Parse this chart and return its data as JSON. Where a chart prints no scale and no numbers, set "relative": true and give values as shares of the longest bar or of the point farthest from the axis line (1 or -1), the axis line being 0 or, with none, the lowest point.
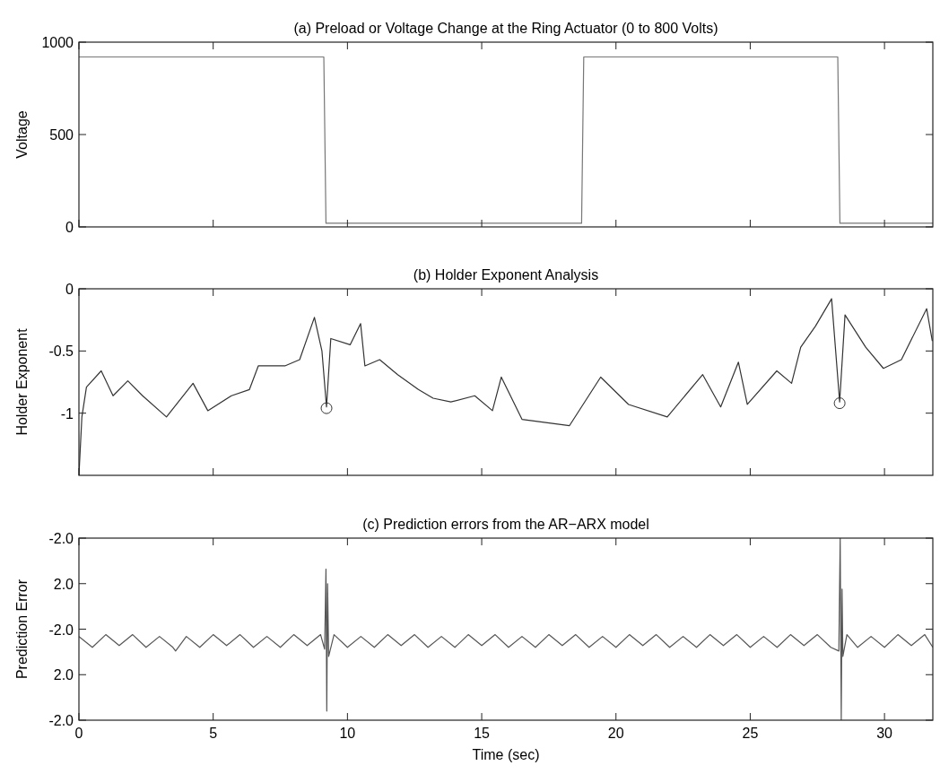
{
  "chart_data": [
    {
      "type": "line",
      "title": "(a) Preload or Voltage Change at the Ring Actuator (0 to 800 Volts)",
      "ylabel": "Voltage",
      "xlim": [
        0,
        31.8
      ],
      "xticks": [
        0,
        5,
        10,
        15,
        20,
        25,
        30
      ],
      "ylim": [
        0,
        1000
      ],
      "yticks": [
        0,
        500,
        1000
      ],
      "tick_labels": "y",
      "series": [
        {
          "color": "#777777",
          "x": [
            0,
            9.12,
            9.2,
            18.72,
            18.8,
            28.26,
            28.34,
            31.8
          ],
          "values": [
            920,
            920,
            20,
            20,
            920,
            920,
            20,
            20
          ]
        }
      ]
    },
    {
      "type": "line",
      "title": "(b) Holder Exponent Analysis",
      "ylabel": "Holder Exponent",
      "xlim": [
        0,
        31.8
      ],
      "xticks": [
        0,
        5,
        10,
        15,
        20,
        25,
        30
      ],
      "ylim": [
        -1.5,
        0
      ],
      "yticks": [
        -1,
        -0.5,
        0
      ],
      "tick_labels": "y",
      "series": [
        {
          "color": "#333333",
          "x": [
            0,
            0.11,
            0.28,
            0.83,
            1.27,
            1.82,
            2.37,
            3.26,
            4.25,
            4.8,
            5.68,
            6.35,
            6.68,
            7.67,
            8.22,
            8.77,
            9.05,
            9.22,
            9.38,
            10.1,
            10.49,
            10.65,
            11.2,
            11.87,
            12.64,
            13.19,
            13.85,
            14.74,
            15.4,
            15.73,
            16.5,
            18.27,
            19.43,
            20.47,
            21.91,
            23.23,
            23.9,
            24.56,
            24.89,
            25.99,
            26.54,
            26.88,
            27.43,
            28.03,
            28.33,
            28.53,
            29.3,
            29.96,
            30.63,
            31.57,
            31.78
          ],
          "values": [
            -1.5,
            -1.03,
            -0.79,
            -0.66,
            -0.86,
            -0.74,
            -0.86,
            -1.03,
            -0.76,
            -0.98,
            -0.86,
            -0.81,
            -0.62,
            -0.62,
            -0.57,
            -0.23,
            -0.5,
            -0.95,
            -0.4,
            -0.45,
            -0.28,
            -0.62,
            -0.57,
            -0.69,
            -0.81,
            -0.88,
            -0.91,
            -0.86,
            -0.98,
            -0.71,
            -1.05,
            -1.1,
            -0.71,
            -0.93,
            -1.03,
            -0.69,
            -0.95,
            -0.59,
            -0.93,
            -0.66,
            -0.76,
            -0.47,
            -0.3,
            -0.08,
            -0.91,
            -0.21,
            -0.47,
            -0.64,
            -0.57,
            -0.16,
            -0.42
          ]
        },
        {
          "type": "scatter",
          "marker": "circle",
          "color": "#333333",
          "x": [
            9.22,
            28.33
          ],
          "values": [
            -0.96,
            -0.92
          ]
        }
      ]
    },
    {
      "type": "line",
      "title": "(c) Prediction errors from the AR−ARX model",
      "ylabel": "Prediction Error",
      "xlabel": "Time (sec)",
      "xlim": [
        0,
        31.8
      ],
      "xticks": [
        0,
        5,
        10,
        15,
        20,
        25,
        30
      ],
      "relative": true,
      "annotations": [
        "-2.0",
        "2.0",
        "-2.0",
        "2.0",
        "-2.0"
      ],
      "series": [
        {
          "color": "#555555",
          "x": [
            0,
            0.5,
            1,
            1.5,
            2,
            2.5,
            3,
            3.5,
            3.6,
            4,
            4.5,
            5,
            5.5,
            6,
            6.5,
            7,
            7.5,
            8,
            8.5,
            9,
            9.15,
            9.2,
            9.23,
            9.26,
            9.3,
            9.5,
            10,
            10.5,
            11,
            11.5,
            12,
            12.5,
            13,
            13.5,
            14,
            14.5,
            15,
            15.5,
            16,
            16.5,
            17,
            17.5,
            18,
            18.5,
            19,
            19.5,
            20,
            20.5,
            21,
            21.5,
            22,
            22.5,
            23,
            23.5,
            24,
            24.5,
            25,
            25.5,
            26,
            26.5,
            27,
            27.5,
            28,
            28.3,
            28.35,
            28.39,
            28.42,
            28.45,
            28.6,
            29,
            29.5,
            30,
            30.5,
            31,
            31.5,
            31.8
          ],
          "values": [
            0.46,
            0.4,
            0.47,
            0.41,
            0.47,
            0.4,
            0.46,
            0.4,
            0.38,
            0.46,
            0.4,
            0.47,
            0.41,
            0.47,
            0.4,
            0.46,
            0.4,
            0.47,
            0.41,
            0.47,
            0.39,
            0.83,
            0.05,
            0.75,
            0.35,
            0.47,
            0.4,
            0.46,
            0.4,
            0.47,
            0.41,
            0.47,
            0.4,
            0.46,
            0.4,
            0.47,
            0.41,
            0.47,
            0.4,
            0.46,
            0.4,
            0.47,
            0.41,
            0.47,
            0.4,
            0.46,
            0.4,
            0.47,
            0.41,
            0.47,
            0.4,
            0.46,
            0.4,
            0.47,
            0.41,
            0.47,
            0.4,
            0.46,
            0.4,
            0.47,
            0.41,
            0.47,
            0.4,
            0.38,
            1,
            0,
            0.72,
            0.35,
            0.47,
            0.4,
            0.46,
            0.4,
            0.47,
            0.41,
            0.47,
            0.4
          ]
        }
      ]
    }
  ]
}
